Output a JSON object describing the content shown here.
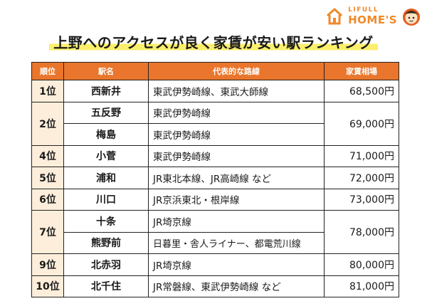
{
  "brand": {
    "top": "LIFULL",
    "main": "HOME'S"
  },
  "title": "上野へのアクセスが良く家賃が安い駅ランキング",
  "table": {
    "headers": {
      "rank": "順位",
      "station": "駅名",
      "lines": "代表的な路線",
      "rent": "家賃相場"
    },
    "rows": [
      {
        "rank": "1位",
        "station": "西新井",
        "lines": "東武伊勢崎線、東武大師線",
        "rent": "68,500円"
      },
      {
        "rank": "2位",
        "station": "五反野",
        "lines": "東武伊勢崎線",
        "rent": "69,000円"
      },
      {
        "station": "梅島",
        "lines": "東武伊勢崎線"
      },
      {
        "rank": "4位",
        "station": "小菅",
        "lines": "東武伊勢崎線",
        "rent": "71,000円"
      },
      {
        "rank": "5位",
        "station": "浦和",
        "lines": "JR東北本線、JR高崎線 など",
        "rent": "72,000円"
      },
      {
        "rank": "6位",
        "station": "川口",
        "lines": "JR京浜東北・根岸線",
        "rent": "73,000円"
      },
      {
        "rank": "7位",
        "station": "十条",
        "lines": "JR埼京線",
        "rent": "78,000円"
      },
      {
        "station": "熊野前",
        "lines": "日暮里・舎人ライナー、都電荒川線"
      },
      {
        "rank": "9位",
        "station": "北赤羽",
        "lines": "JR埼京線",
        "rent": "80,000円"
      },
      {
        "rank": "10位",
        "station": "北千住",
        "lines": "JR常磐線、東武伊勢崎線 など",
        "rent": "81,000円"
      }
    ]
  },
  "colors": {
    "header_bg": "#e9762c",
    "rank_bg": "#fdeedb",
    "title_highlight": "#fbef6b",
    "brand": "#f08a2a"
  }
}
